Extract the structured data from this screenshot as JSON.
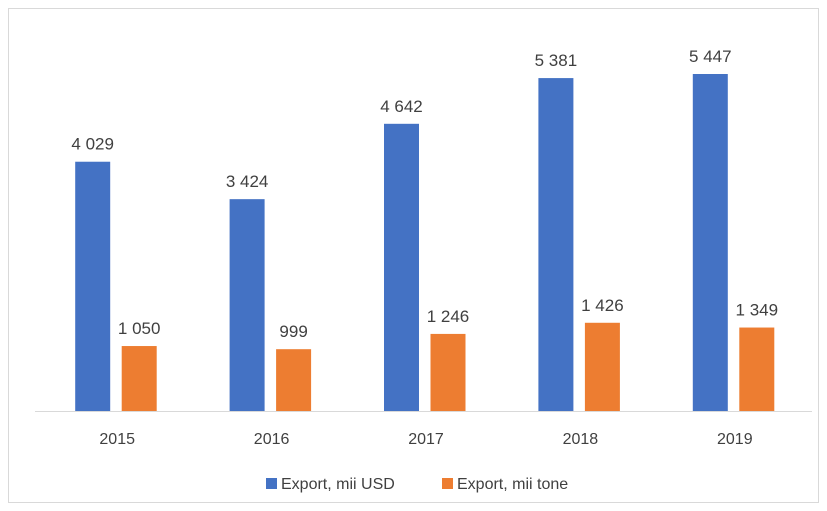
{
  "chart_data": {
    "type": "bar",
    "title": "",
    "xlabel": "",
    "ylabel": "",
    "categories": [
      "2015",
      "2016",
      "2017",
      "2018",
      "2019"
    ],
    "series": [
      {
        "name": "Export, mii USD",
        "color": "#4472C4",
        "values": [
          4029,
          3424,
          4642,
          5381,
          5447
        ],
        "labels": [
          "4 029",
          "3 424",
          "4 642",
          "5 381",
          "5 447"
        ]
      },
      {
        "name": "Export, mii tone",
        "color": "#ED7D31",
        "values": [
          1050,
          999,
          1246,
          1426,
          1349
        ],
        "labels": [
          "1 050",
          "999",
          "1 246",
          "1 426",
          "1 349"
        ]
      }
    ],
    "ylim": [
      0,
      5800
    ],
    "grid": false,
    "legend": "bottom"
  }
}
